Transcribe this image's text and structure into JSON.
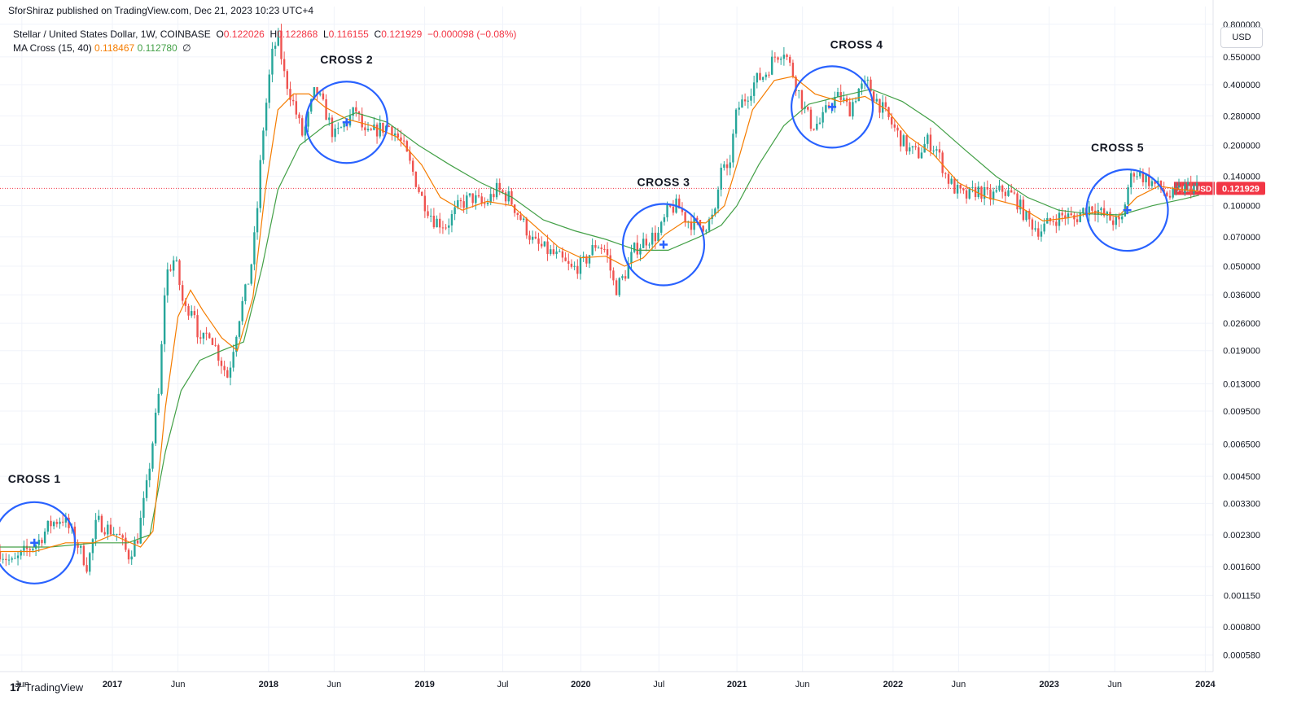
{
  "header": {
    "published": "SforShiraz published on TradingView.com, Dec 21, 2023 10:23 UTC+4",
    "symbol_line": "Stellar / United States Dollar, 1W, COINBASE",
    "o_label": "O",
    "o_value": "0.122026",
    "h_label": "H",
    "h_value": "0.122868",
    "l_label": "L",
    "l_value": "0.116155",
    "c_label": "C",
    "c_value": "0.121929",
    "change": "−0.000098 (−0.08%)",
    "indicator_name": "MA Cross (15, 40)",
    "ma_fast_value": "0.118467",
    "ma_slow_value": "0.112780",
    "indicator_option": "∅"
  },
  "currency_button": "USD",
  "brand": {
    "logo": "17",
    "name": "TradingView"
  },
  "price_label": {
    "symbol": "XLMUSD",
    "value": "0.121929"
  },
  "colors": {
    "up": "#26a69a",
    "down": "#ef5350",
    "ma_fast": "#f57c00",
    "ma_slow": "#43a047",
    "circle": "#2962ff",
    "price_line": "#f23645"
  },
  "chart_data": {
    "type": "candlestick",
    "y_scale": "log",
    "ylim": [
      0.00048,
      0.98
    ],
    "y_ticks": [
      "0.800000",
      "0.550000",
      "0.400000",
      "0.280000",
      "0.200000",
      "0.140000",
      "0.100000",
      "0.070000",
      "0.050000",
      "0.036000",
      "0.026000",
      "0.019000",
      "0.013000",
      "0.009500",
      "0.006500",
      "0.004500",
      "0.003300",
      "0.002300",
      "0.001600",
      "0.001150",
      "0.000800",
      "0.000580"
    ],
    "x_ticks": [
      "Jun",
      "2017",
      "Jun",
      "2018",
      "Jun",
      "2019",
      "Jul",
      "2020",
      "Jul",
      "2021",
      "Jun",
      "2022",
      "Jun",
      "2023",
      "Jun",
      "2024"
    ],
    "x_tick_dates": [
      2016.42,
      2017.0,
      2017.42,
      2018.0,
      2018.42,
      2019.0,
      2019.5,
      2020.0,
      2020.5,
      2021.0,
      2021.42,
      2022.0,
      2022.42,
      2023.0,
      2023.42,
      2024.0
    ],
    "xlim": [
      2016.28,
      2024.05
    ],
    "last_price": 0.121929,
    "price_points": [
      [
        2016.28,
        0.0019
      ],
      [
        2016.36,
        0.00165
      ],
      [
        2016.44,
        0.0019
      ],
      [
        2016.52,
        0.0021
      ],
      [
        2016.6,
        0.0026
      ],
      [
        2016.68,
        0.0028
      ],
      [
        2016.76,
        0.0022
      ],
      [
        2016.84,
        0.0016
      ],
      [
        2016.9,
        0.0027
      ],
      [
        2016.96,
        0.0025
      ],
      [
        2017.04,
        0.0023
      ],
      [
        2017.1,
        0.0018
      ],
      [
        2017.16,
        0.0022
      ],
      [
        2017.22,
        0.004
      ],
      [
        2017.3,
        0.012
      ],
      [
        2017.34,
        0.045
      ],
      [
        2017.4,
        0.055
      ],
      [
        2017.46,
        0.03
      ],
      [
        2017.52,
        0.032
      ],
      [
        2017.56,
        0.02
      ],
      [
        2017.62,
        0.024
      ],
      [
        2017.68,
        0.018
      ],
      [
        2017.74,
        0.014
      ],
      [
        2017.78,
        0.021
      ],
      [
        2017.82,
        0.03
      ],
      [
        2017.88,
        0.045
      ],
      [
        2017.92,
        0.08
      ],
      [
        2017.96,
        0.22
      ],
      [
        2018.02,
        0.55
      ],
      [
        2018.06,
        0.7
      ],
      [
        2018.1,
        0.45
      ],
      [
        2018.16,
        0.32
      ],
      [
        2018.22,
        0.22
      ],
      [
        2018.3,
        0.38
      ],
      [
        2018.36,
        0.3
      ],
      [
        2018.42,
        0.22
      ],
      [
        2018.5,
        0.26
      ],
      [
        2018.56,
        0.3
      ],
      [
        2018.62,
        0.22
      ],
      [
        2018.7,
        0.24
      ],
      [
        2018.78,
        0.25
      ],
      [
        2018.86,
        0.2
      ],
      [
        2018.92,
        0.15
      ],
      [
        2018.98,
        0.11
      ],
      [
        2019.06,
        0.085
      ],
      [
        2019.14,
        0.08
      ],
      [
        2019.22,
        0.1
      ],
      [
        2019.3,
        0.11
      ],
      [
        2019.38,
        0.1
      ],
      [
        2019.46,
        0.12
      ],
      [
        2019.54,
        0.11
      ],
      [
        2019.62,
        0.085
      ],
      [
        2019.7,
        0.065
      ],
      [
        2019.78,
        0.06
      ],
      [
        2019.86,
        0.055
      ],
      [
        2019.94,
        0.048
      ],
      [
        2020.02,
        0.052
      ],
      [
        2020.1,
        0.065
      ],
      [
        2020.16,
        0.06
      ],
      [
        2020.22,
        0.038
      ],
      [
        2020.28,
        0.045
      ],
      [
        2020.34,
        0.06
      ],
      [
        2020.42,
        0.068
      ],
      [
        2020.5,
        0.072
      ],
      [
        2020.56,
        0.095
      ],
      [
        2020.62,
        0.1
      ],
      [
        2020.68,
        0.085
      ],
      [
        2020.74,
        0.08
      ],
      [
        2020.8,
        0.08
      ],
      [
        2020.86,
        0.09
      ],
      [
        2020.9,
        0.16
      ],
      [
        2020.94,
        0.14
      ],
      [
        2021.0,
        0.3
      ],
      [
        2021.06,
        0.35
      ],
      [
        2021.12,
        0.42
      ],
      [
        2021.18,
        0.45
      ],
      [
        2021.24,
        0.55
      ],
      [
        2021.3,
        0.6
      ],
      [
        2021.36,
        0.45
      ],
      [
        2021.42,
        0.32
      ],
      [
        2021.48,
        0.25
      ],
      [
        2021.54,
        0.26
      ],
      [
        2021.6,
        0.33
      ],
      [
        2021.66,
        0.35
      ],
      [
        2021.72,
        0.3
      ],
      [
        2021.78,
        0.38
      ],
      [
        2021.84,
        0.4
      ],
      [
        2021.9,
        0.33
      ],
      [
        2021.96,
        0.28
      ],
      [
        2022.04,
        0.22
      ],
      [
        2022.1,
        0.19
      ],
      [
        2022.16,
        0.18
      ],
      [
        2022.22,
        0.21
      ],
      [
        2022.28,
        0.19
      ],
      [
        2022.34,
        0.14
      ],
      [
        2022.4,
        0.12
      ],
      [
        2022.46,
        0.11
      ],
      [
        2022.54,
        0.12
      ],
      [
        2022.62,
        0.11
      ],
      [
        2022.7,
        0.12
      ],
      [
        2022.78,
        0.11
      ],
      [
        2022.86,
        0.085
      ],
      [
        2022.94,
        0.075
      ],
      [
        2023.02,
        0.085
      ],
      [
        2023.1,
        0.09
      ],
      [
        2023.16,
        0.085
      ],
      [
        2023.22,
        0.095
      ],
      [
        2023.28,
        0.1
      ],
      [
        2023.34,
        0.09
      ],
      [
        2023.4,
        0.085
      ],
      [
        2023.46,
        0.08
      ],
      [
        2023.5,
        0.12
      ],
      [
        2023.54,
        0.15
      ],
      [
        2023.6,
        0.14
      ],
      [
        2023.66,
        0.13
      ],
      [
        2023.72,
        0.12
      ],
      [
        2023.78,
        0.11
      ],
      [
        2023.84,
        0.12
      ],
      [
        2023.9,
        0.125
      ],
      [
        2023.96,
        0.122
      ]
    ],
    "ma_fast": [
      [
        2016.28,
        0.0019
      ],
      [
        2016.5,
        0.0019
      ],
      [
        2016.7,
        0.0021
      ],
      [
        2016.88,
        0.0021
      ],
      [
        2017.0,
        0.0023
      ],
      [
        2017.18,
        0.002
      ],
      [
        2017.26,
        0.0024
      ],
      [
        2017.34,
        0.01
      ],
      [
        2017.42,
        0.028
      ],
      [
        2017.5,
        0.038
      ],
      [
        2017.58,
        0.03
      ],
      [
        2017.7,
        0.022
      ],
      [
        2017.8,
        0.019
      ],
      [
        2017.9,
        0.035
      ],
      [
        2017.98,
        0.12
      ],
      [
        2018.06,
        0.3
      ],
      [
        2018.16,
        0.36
      ],
      [
        2018.26,
        0.36
      ],
      [
        2018.36,
        0.31
      ],
      [
        2018.5,
        0.27
      ],
      [
        2018.66,
        0.25
      ],
      [
        2018.82,
        0.22
      ],
      [
        2018.98,
        0.16
      ],
      [
        2019.1,
        0.11
      ],
      [
        2019.24,
        0.095
      ],
      [
        2019.4,
        0.105
      ],
      [
        2019.56,
        0.1
      ],
      [
        2019.7,
        0.08
      ],
      [
        2019.86,
        0.062
      ],
      [
        2020.0,
        0.055
      ],
      [
        2020.16,
        0.056
      ],
      [
        2020.28,
        0.05
      ],
      [
        2020.4,
        0.055
      ],
      [
        2020.54,
        0.072
      ],
      [
        2020.66,
        0.083
      ],
      [
        2020.8,
        0.082
      ],
      [
        2020.92,
        0.1
      ],
      [
        2021.0,
        0.16
      ],
      [
        2021.1,
        0.3
      ],
      [
        2021.24,
        0.42
      ],
      [
        2021.36,
        0.44
      ],
      [
        2021.5,
        0.36
      ],
      [
        2021.66,
        0.33
      ],
      [
        2021.82,
        0.35
      ],
      [
        2021.96,
        0.3
      ],
      [
        2022.1,
        0.22
      ],
      [
        2022.26,
        0.18
      ],
      [
        2022.42,
        0.13
      ],
      [
        2022.6,
        0.11
      ],
      [
        2022.8,
        0.1
      ],
      [
        2022.96,
        0.084
      ],
      [
        2023.12,
        0.087
      ],
      [
        2023.3,
        0.093
      ],
      [
        2023.44,
        0.088
      ],
      [
        2023.56,
        0.11
      ],
      [
        2023.7,
        0.125
      ],
      [
        2023.86,
        0.12
      ],
      [
        2023.96,
        0.118
      ]
    ],
    "ma_slow": [
      [
        2016.28,
        0.002
      ],
      [
        2016.6,
        0.002
      ],
      [
        2016.9,
        0.0021
      ],
      [
        2017.1,
        0.0021
      ],
      [
        2017.24,
        0.0023
      ],
      [
        2017.34,
        0.006
      ],
      [
        2017.44,
        0.012
      ],
      [
        2017.56,
        0.017
      ],
      [
        2017.7,
        0.019
      ],
      [
        2017.84,
        0.021
      ],
      [
        2017.96,
        0.05
      ],
      [
        2018.06,
        0.12
      ],
      [
        2018.2,
        0.2
      ],
      [
        2018.36,
        0.25
      ],
      [
        2018.56,
        0.29
      ],
      [
        2018.76,
        0.26
      ],
      [
        2018.96,
        0.2
      ],
      [
        2019.16,
        0.16
      ],
      [
        2019.36,
        0.13
      ],
      [
        2019.56,
        0.11
      ],
      [
        2019.76,
        0.085
      ],
      [
        2019.96,
        0.075
      ],
      [
        2020.16,
        0.068
      ],
      [
        2020.36,
        0.06
      ],
      [
        2020.56,
        0.06
      ],
      [
        2020.76,
        0.07
      ],
      [
        2020.9,
        0.08
      ],
      [
        2021.0,
        0.1
      ],
      [
        2021.14,
        0.16
      ],
      [
        2021.3,
        0.25
      ],
      [
        2021.46,
        0.32
      ],
      [
        2021.66,
        0.35
      ],
      [
        2021.86,
        0.38
      ],
      [
        2022.06,
        0.33
      ],
      [
        2022.26,
        0.26
      ],
      [
        2022.46,
        0.19
      ],
      [
        2022.66,
        0.14
      ],
      [
        2022.86,
        0.11
      ],
      [
        2023.06,
        0.095
      ],
      [
        2023.26,
        0.091
      ],
      [
        2023.46,
        0.09
      ],
      [
        2023.66,
        0.1
      ],
      [
        2023.86,
        0.108
      ],
      [
        2023.96,
        0.1128
      ]
    ],
    "annotations": [
      {
        "label": "CROSS 1",
        "date": 2016.5,
        "price": 0.0021
      },
      {
        "label": "CROSS 2",
        "date": 2018.5,
        "price": 0.26
      },
      {
        "label": "CROSS 3",
        "date": 2020.53,
        "price": 0.064
      },
      {
        "label": "CROSS 4",
        "date": 2021.61,
        "price": 0.31
      },
      {
        "label": "CROSS 5",
        "date": 2023.5,
        "price": 0.095
      }
    ]
  }
}
